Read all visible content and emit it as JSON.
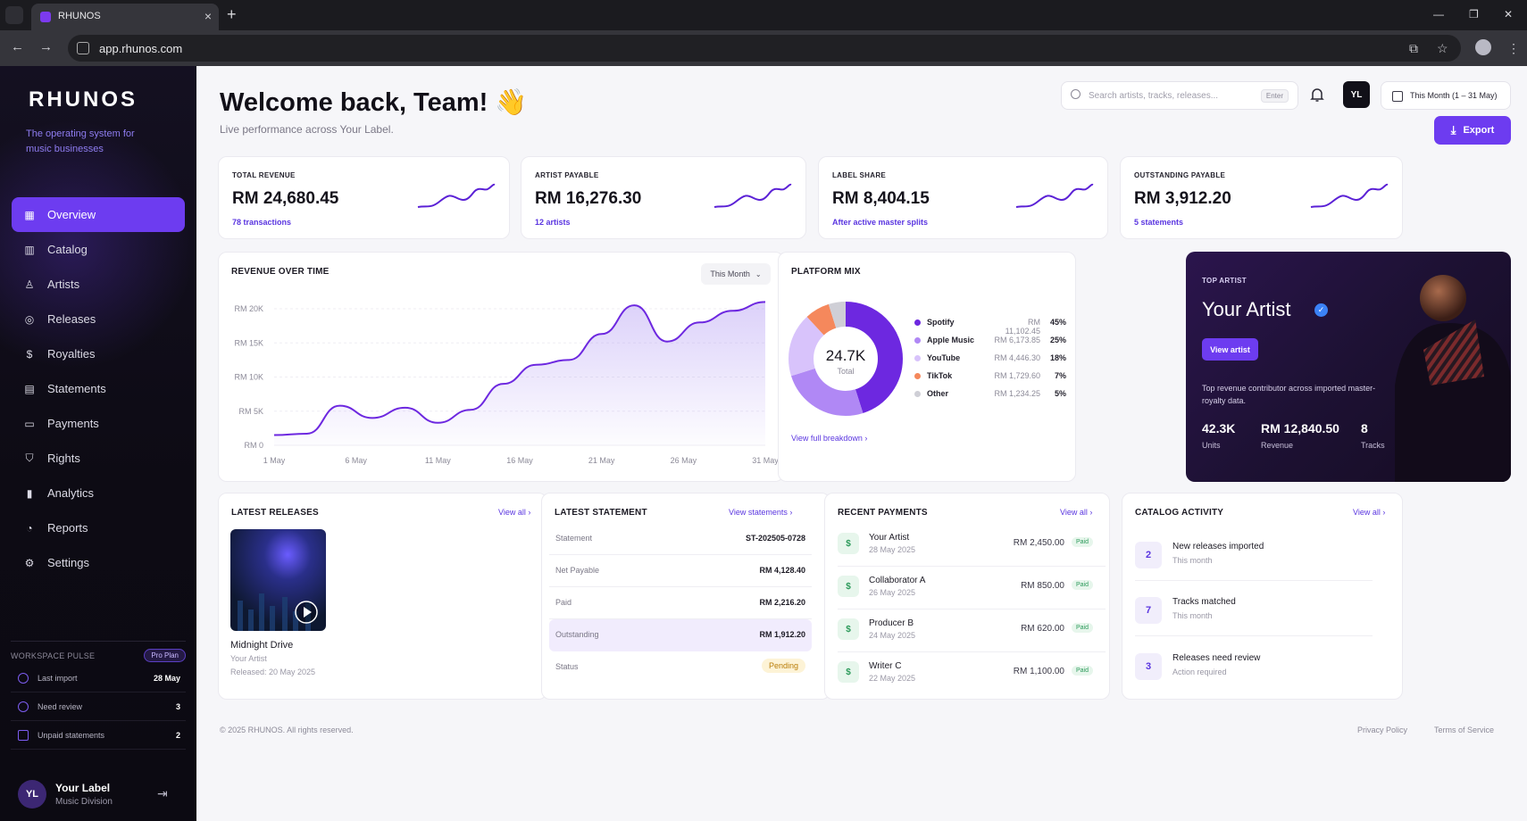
{
  "browser": {
    "tab_title": "RHUNOS",
    "url": "app.rhunos.com"
  },
  "sidebar": {
    "logo": "RHUNOS",
    "tagline": "The operating system for music businesses",
    "items": [
      {
        "label": "Overview",
        "icon": "grid-icon",
        "active": true
      },
      {
        "label": "Catalog",
        "icon": "library-icon"
      },
      {
        "label": "Artists",
        "icon": "users-icon"
      },
      {
        "label": "Releases",
        "icon": "disc-icon"
      },
      {
        "label": "Royalties",
        "icon": "dollar-circle-icon"
      },
      {
        "label": "Statements",
        "icon": "document-icon"
      },
      {
        "label": "Payments",
        "icon": "wallet-icon"
      },
      {
        "label": "Rights",
        "icon": "shield-icon"
      },
      {
        "label": "Analytics",
        "icon": "bar-chart-icon"
      },
      {
        "label": "Reports",
        "icon": "pie-chart-icon"
      },
      {
        "label": "Settings",
        "icon": "gear-icon"
      }
    ],
    "pulse": {
      "title": "WORKSPACE PULSE",
      "plan": "Pro Plan",
      "rows": [
        {
          "label": "Last import",
          "value": "28 May"
        },
        {
          "label": "Need review",
          "value": "3"
        },
        {
          "label": "Unpaid statements",
          "value": "2"
        }
      ]
    },
    "user": {
      "initials": "YL",
      "name": "Your Label",
      "org": "Music Division"
    }
  },
  "header": {
    "title": "Welcome back, Team! 👋",
    "subtitle": "Live performance across Your Label.",
    "search_placeholder": "Search artists, tracks, releases...",
    "search_key": "Enter",
    "avatar": "YL",
    "date_range": "This Month (1 – 31 May)",
    "export": "Export"
  },
  "kpis": [
    {
      "label": "TOTAL REVENUE",
      "value": "RM 24,680.45",
      "sub": "78 transactions"
    },
    {
      "label": "ARTIST PAYABLE",
      "value": "RM 16,276.30",
      "sub": "12 artists"
    },
    {
      "label": "LABEL SHARE",
      "value": "RM 8,404.15",
      "sub": "After active master splits"
    },
    {
      "label": "OUTSTANDING PAYABLE",
      "value": "RM 3,912.20",
      "sub": "5 statements"
    }
  ],
  "revenue": {
    "title": "REVENUE OVER TIME",
    "period": "This Month",
    "y_ticks": [
      "RM 20K",
      "RM 15K",
      "RM 10K",
      "RM 5K",
      "RM 0"
    ],
    "x_ticks": [
      "1 May",
      "6 May",
      "11 May",
      "16 May",
      "21 May",
      "26 May",
      "31 May"
    ]
  },
  "chart_data": {
    "type": "area",
    "title": "REVENUE OVER TIME",
    "x": [
      1,
      3,
      5,
      7,
      9,
      11,
      13,
      15,
      17,
      19,
      21,
      23,
      25,
      27,
      29,
      31
    ],
    "y": [
      1500,
      1700,
      5800,
      4000,
      5500,
      3300,
      5200,
      9000,
      11800,
      12500,
      16300,
      20500,
      15200,
      18000,
      19700,
      21000
    ],
    "ylim": [
      0,
      20000
    ],
    "xlabel": "",
    "ylabel": "",
    "grid": true
  },
  "platform_mix": {
    "title": "PLATFORM MIX",
    "total": "24.7K",
    "total_label": "Total",
    "link": "View full breakdown",
    "items": [
      {
        "name": "Spotify",
        "amount": "RM 11,102.45",
        "pct": "45%",
        "share": 45,
        "color": "#6d28e0"
      },
      {
        "name": "Apple Music",
        "amount": "RM 6,173.85",
        "pct": "25%",
        "share": 25,
        "color": "#b088f5"
      },
      {
        "name": "YouTube",
        "amount": "RM 4,446.30",
        "pct": "18%",
        "share": 18,
        "color": "#d8c3fb"
      },
      {
        "name": "TikTok",
        "amount": "RM 1,729.60",
        "pct": "7%",
        "share": 7,
        "color": "#f5885c"
      },
      {
        "name": "Other",
        "amount": "RM 1,234.25",
        "pct": "5%",
        "share": 5,
        "color": "#cfcfd6"
      }
    ]
  },
  "top_artist": {
    "label": "TOP ARTIST",
    "name": "Your Artist",
    "button": "View artist",
    "desc": "Top revenue contributor across imported master-royalty data.",
    "stats": [
      {
        "value": "42.3K",
        "label": "Units"
      },
      {
        "value": "RM 12,840.50",
        "label": "Revenue"
      },
      {
        "value": "8",
        "label": "Tracks"
      }
    ]
  },
  "latest_releases": {
    "title": "LATEST RELEASES",
    "link": "View all",
    "item": {
      "title": "Midnight Drive",
      "artist": "Your Artist",
      "released": "Released: 20 May 2025"
    }
  },
  "latest_statement": {
    "title": "LATEST STATEMENT",
    "link": "View statements",
    "rows": [
      {
        "label": "Statement",
        "value": "ST-202505-0728"
      },
      {
        "label": "Net Payable",
        "value": "RM 4,128.40"
      },
      {
        "label": "Paid",
        "value": "RM 2,216.20"
      },
      {
        "label": "Outstanding",
        "value": "RM 1,912.20"
      }
    ],
    "status_label": "Status",
    "status": "Pending"
  },
  "recent_payments": {
    "title": "RECENT PAYMENTS",
    "link": "View all",
    "items": [
      {
        "name": "Your Artist",
        "date": "28 May 2025",
        "amount": "RM 2,450.00",
        "status": "Paid"
      },
      {
        "name": "Collaborator A",
        "date": "26 May 2025",
        "amount": "RM 850.00",
        "status": "Paid"
      },
      {
        "name": "Producer B",
        "date": "24 May 2025",
        "amount": "RM 620.00",
        "status": "Paid"
      },
      {
        "name": "Writer C",
        "date": "22 May 2025",
        "amount": "RM 1,100.00",
        "status": "Paid"
      }
    ]
  },
  "catalog_activity": {
    "title": "CATALOG ACTIVITY",
    "link": "View all",
    "items": [
      {
        "count": "2",
        "title": "New releases imported",
        "sub": "This month"
      },
      {
        "count": "7",
        "title": "Tracks matched",
        "sub": "This month"
      },
      {
        "count": "3",
        "title": "Releases need review",
        "sub": "Action required"
      }
    ]
  },
  "footer": {
    "copyright": "© 2025 RHUNOS. All rights reserved.",
    "privacy": "Privacy Policy",
    "terms": "Terms of Service"
  },
  "colors": {
    "accent": "#6d3cf0",
    "sidebar": "#100d18",
    "success": "#2c9a5a",
    "warning": "#b97d09"
  }
}
